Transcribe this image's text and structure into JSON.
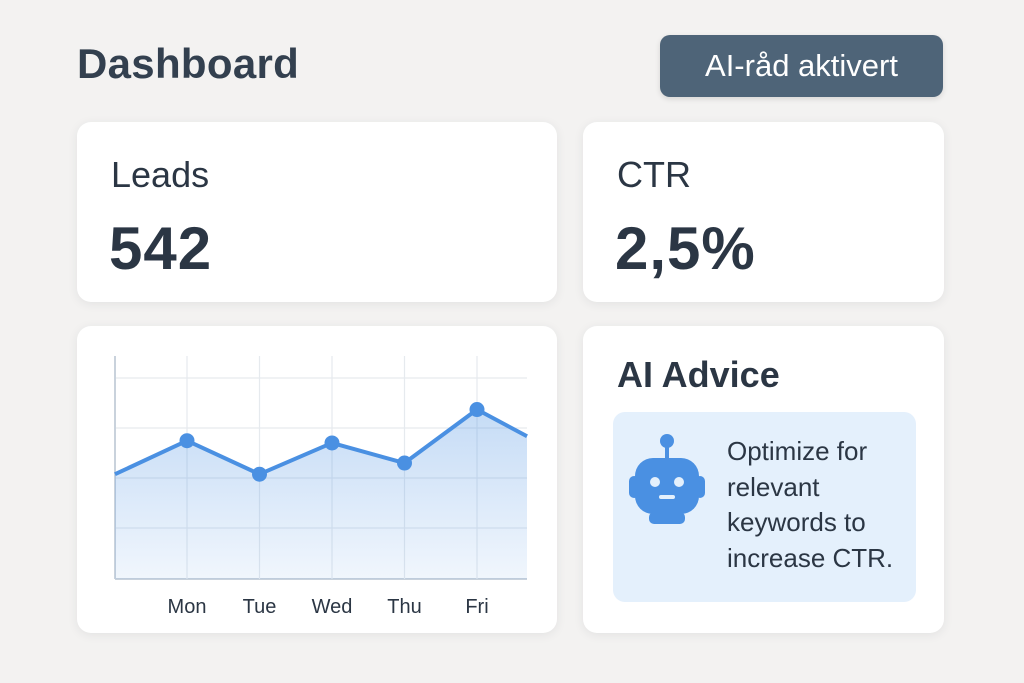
{
  "header": {
    "title": "Dashboard",
    "ai_badge": "AI-råd aktivert"
  },
  "kpis": {
    "leads": {
      "label": "Leads",
      "value": "542"
    },
    "ctr": {
      "label": "CTR",
      "value": "2,5%"
    }
  },
  "advice": {
    "title": "AI Advice",
    "text": "Optimize for relevant keywords to increase CTR.",
    "icon": "robot-icon"
  },
  "colors": {
    "accent": "#4a90e2",
    "badge": "#4e6478",
    "advice_bg": "#e4f0fc"
  },
  "chart_data": {
    "type": "area",
    "categories": [
      "Mon",
      "Tue",
      "Wed",
      "Thu",
      "Fri"
    ],
    "values": [
      62,
      47,
      61,
      52,
      76
    ],
    "ylim": [
      0,
      100
    ],
    "grid": true
  }
}
